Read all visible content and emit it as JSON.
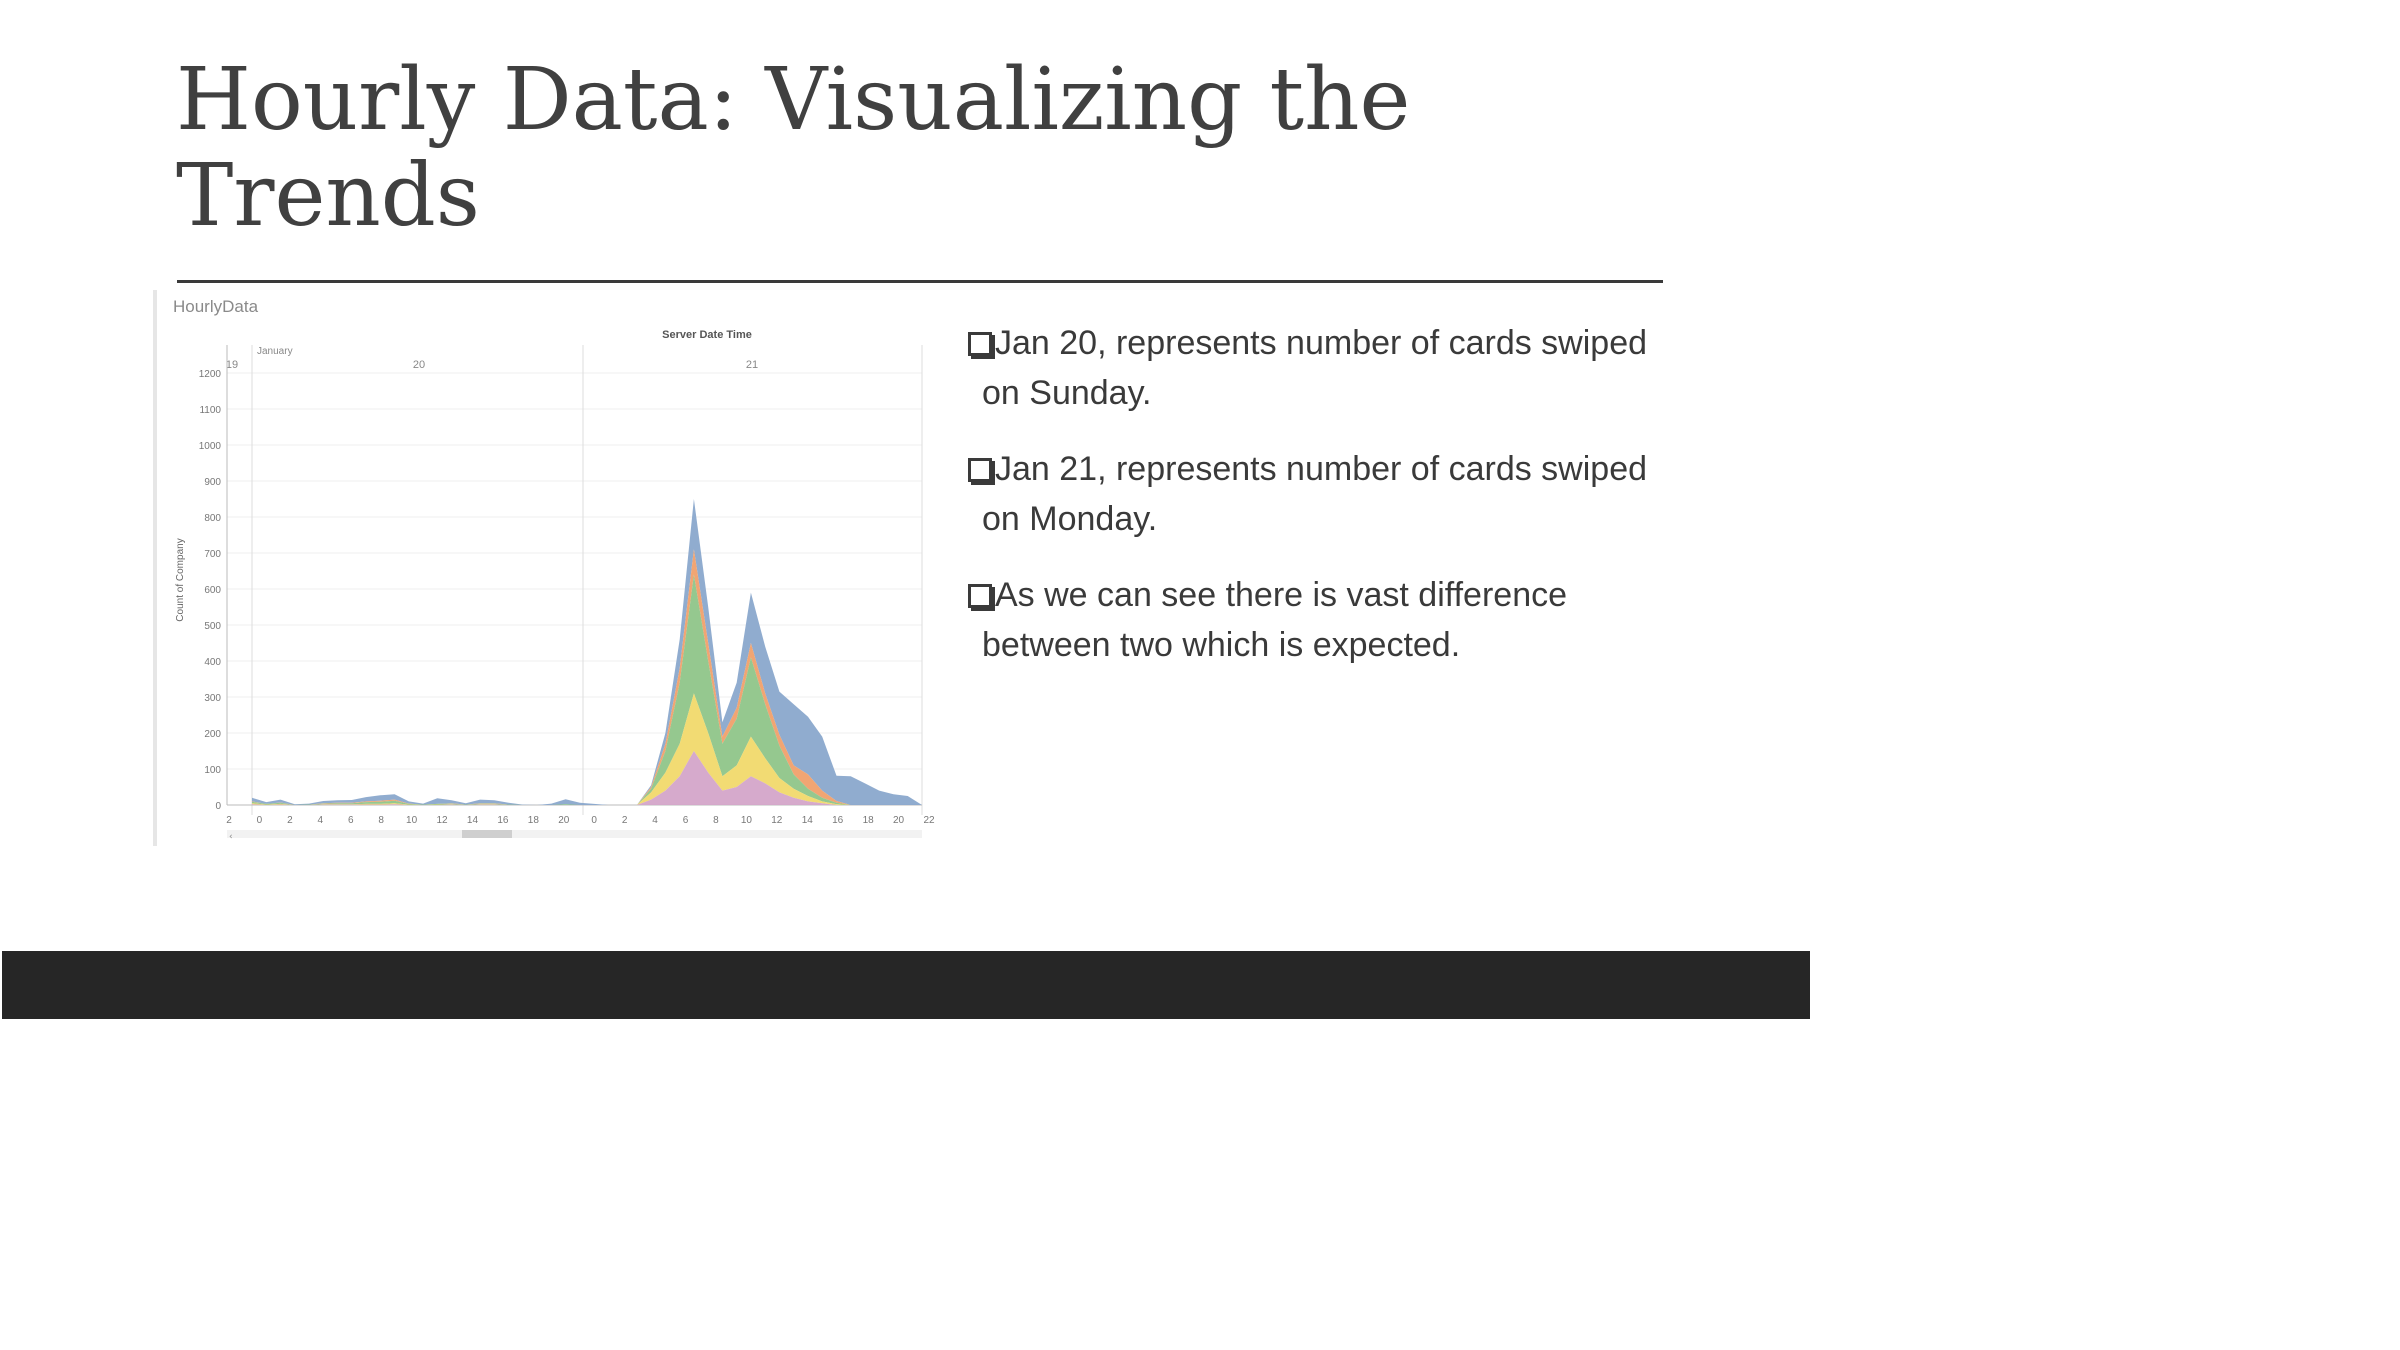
{
  "slide": {
    "title_line1": "Hourly Data: Visualizing the",
    "title_line2": "Trends"
  },
  "bullets": [
    "Jan 20, represents number of cards swiped on Sunday.",
    "Jan 21, represents number of cards swiped on Monday.",
    "As we can see there is vast difference between two which is expected."
  ],
  "chart_data": {
    "type": "area",
    "title": "HourlyData",
    "top_header": "Server Date Time",
    "month_label": "January",
    "day_headers": [
      "19",
      "20",
      "21"
    ],
    "ylabel": "Count of Company",
    "ylim": [
      0,
      1250
    ],
    "y_ticks": [
      0,
      100,
      200,
      300,
      400,
      500,
      600,
      700,
      800,
      900,
      1000,
      1100,
      1200
    ],
    "x_tick_labels": [
      "2",
      "0",
      "2",
      "4",
      "6",
      "8",
      "10",
      "12",
      "14",
      "16",
      "18",
      "20",
      "0",
      "2",
      "4",
      "6",
      "8",
      "10",
      "12",
      "14",
      "16",
      "18",
      "20",
      "22"
    ],
    "stacked": true,
    "grid": true,
    "x_hours": [
      0,
      1,
      2,
      3,
      4,
      5,
      6,
      7,
      8,
      9,
      10,
      11,
      12,
      13,
      14,
      15,
      16,
      17,
      18,
      19,
      20,
      21,
      22,
      23,
      24,
      25,
      26,
      27,
      28,
      29,
      30,
      31,
      32,
      33,
      34,
      35,
      36,
      37,
      38,
      39,
      40,
      41,
      42,
      43,
      44,
      45,
      46,
      47
    ],
    "series": [
      {
        "color": "#d4a5c9",
        "values": [
          2,
          0,
          1,
          0,
          0,
          1,
          1,
          1,
          1,
          1,
          2,
          0,
          0,
          0,
          1,
          0,
          1,
          1,
          0,
          0,
          0,
          0,
          0,
          0,
          0,
          0,
          0,
          0,
          15,
          40,
          80,
          150,
          90,
          40,
          50,
          80,
          60,
          35,
          20,
          10,
          5,
          0,
          0,
          0,
          0,
          0,
          0,
          0
        ]
      },
      {
        "color": "#f1d96b",
        "values": [
          3,
          1,
          2,
          0,
          0,
          1,
          1,
          1,
          2,
          2,
          3,
          1,
          0,
          1,
          1,
          0,
          1,
          1,
          0,
          0,
          0,
          0,
          0,
          0,
          0,
          0,
          0,
          0,
          20,
          50,
          90,
          160,
          110,
          40,
          60,
          110,
          70,
          40,
          25,
          15,
          5,
          2,
          0,
          0,
          0,
          0,
          0,
          0
        ]
      },
      {
        "color": "#8fc589",
        "values": [
          4,
          2,
          3,
          0,
          1,
          2,
          3,
          3,
          5,
          6,
          7,
          2,
          1,
          2,
          2,
          1,
          2,
          2,
          1,
          0,
          0,
          0,
          2,
          0,
          0,
          0,
          0,
          0,
          10,
          60,
          170,
          330,
          200,
          90,
          130,
          220,
          150,
          90,
          40,
          20,
          10,
          4,
          0,
          0,
          0,
          0,
          0,
          0
        ]
      },
      {
        "color": "#f0a06b",
        "values": [
          1,
          0,
          1,
          0,
          0,
          1,
          1,
          1,
          2,
          3,
          3,
          1,
          0,
          0,
          1,
          0,
          1,
          1,
          0,
          0,
          0,
          0,
          0,
          0,
          0,
          0,
          0,
          0,
          5,
          20,
          40,
          70,
          50,
          20,
          30,
          40,
          30,
          30,
          25,
          40,
          20,
          5,
          0,
          0,
          0,
          0,
          0,
          0
        ]
      },
      {
        "color": "#8aa8cc",
        "values": [
          10,
          5,
          8,
          2,
          3,
          6,
          7,
          8,
          12,
          15,
          15,
          6,
          3,
          16,
          8,
          4,
          10,
          8,
          5,
          1,
          0,
          4,
          14,
          6,
          3,
          0,
          0,
          0,
          5,
          30,
          80,
          140,
          100,
          40,
          70,
          140,
          130,
          120,
          170,
          160,
          150,
          70,
          80,
          60,
          40,
          30,
          25,
          0
        ]
      }
    ]
  }
}
